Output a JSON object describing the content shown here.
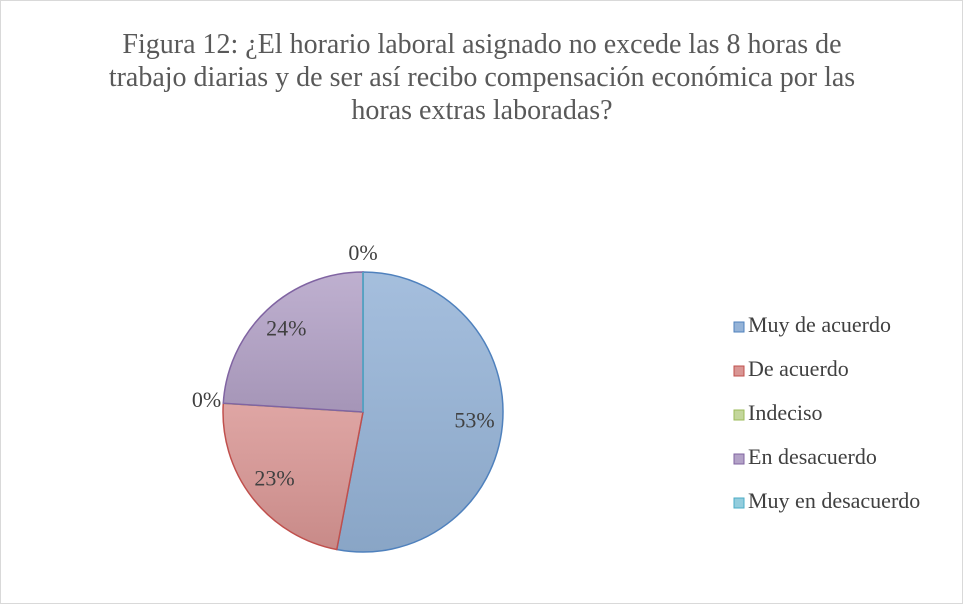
{
  "chart_data": {
    "type": "pie",
    "title": "Figura 12: ¿El horario laboral asignado no excede las 8 horas de trabajo diarias y de ser así recibo compensación económica por las horas extras laboradas?",
    "categories": [
      "Muy de acuerdo",
      "De acuerdo",
      "Indeciso",
      "En desacuerdo",
      "Muy en desacuerdo"
    ],
    "values": [
      53,
      23,
      0,
      24,
      0
    ],
    "value_labels": [
      "53%",
      "23%",
      "0%",
      "24%",
      "0%"
    ],
    "colors": [
      "#95b3d7",
      "#d99694",
      "#c3d69b",
      "#b3a2c7",
      "#93cddd"
    ],
    "legend": "right"
  }
}
